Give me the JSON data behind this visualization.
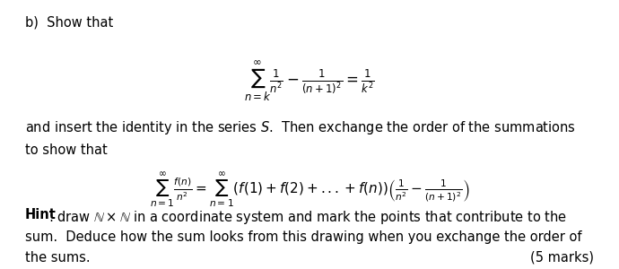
{
  "background_color": "#ffffff",
  "text_color": "#000000",
  "figsize": [
    6.9,
    3.0
  ],
  "dpi": 100,
  "part_label": "b)  Show that",
  "equation1": "$\\sum_{n=k}^{\\infty}\\frac{1}{n^2} - \\frac{1}{(n+1)^2} = \\frac{1}{k^2}$",
  "middle_text1": "and insert the identity in the series $S$.  Then exchange the order of the summations",
  "middle_text2": "to show that",
  "equation2a": "$\\sum_{n=1}^{\\infty}\\frac{f(n)}{n^2}$",
  "equation2b": "$= \\sum_{n=1}^{\\infty}(f(1)+f(2)+...+f(n))\\left(\\frac{1}{n^2} - \\frac{1}{(n+1)^2}\\right)$",
  "hint_bold": "Hint",
  "hint_line1": ": draw $\\mathbb{N}\\times\\mathbb{N}$ in a coordinate system and mark the points that contribute to the",
  "hint_line2": "sum.  Deduce how the sum looks from this drawing when you exchange the order of",
  "hint_line3": "the sums.",
  "marks": "(5 marks)"
}
